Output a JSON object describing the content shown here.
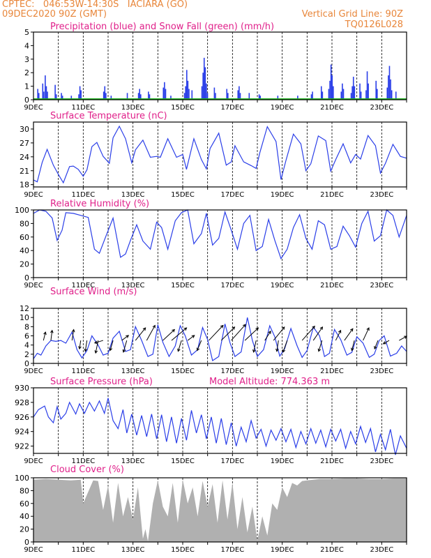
{
  "header": {
    "line1_left": "CPTEC:   046:53W-14:30S   IACIARA (GO)",
    "line2_left": "09DEC2020 90Z (GMT)",
    "line1_right": "Vertical Grid Line: 90Z",
    "line2_right": "TQ0126L028",
    "accent_color": "#e8863a",
    "title_color": "#e0208a"
  },
  "x_tick_labels": [
    "9DEC",
    "11DEC",
    "13DEC",
    "15DEC",
    "17DEC",
    "19DEC",
    "21DEC",
    "23DEC"
  ],
  "chart_data": [
    {
      "id": "precip",
      "type": "bar",
      "title": "Precipitation (blue) and Snow Fall (green) (mm/h)",
      "ylim": [
        0,
        5
      ],
      "yticks": [
        0,
        1,
        2,
        3,
        4,
        5
      ],
      "xlim": [
        0,
        15
      ],
      "series_colors": {
        "precip": "#2a3ee8",
        "snow": "#20b020"
      },
      "precip_events": [
        {
          "day": 0.15,
          "vals": [
            0.8,
            0.5
          ]
        },
        {
          "day": 0.35,
          "vals": [
            1.2,
            0.6
          ]
        },
        {
          "day": 0.45,
          "vals": [
            1.8,
            1.0,
            0.6
          ]
        },
        {
          "day": 0.85,
          "vals": [
            1.1,
            0.4
          ]
        },
        {
          "day": 1.1,
          "vals": [
            0.5,
            0.3
          ]
        },
        {
          "day": 1.5,
          "vals": [
            0.3
          ]
        },
        {
          "day": 1.8,
          "vals": [
            0.4,
            1.0,
            0.7
          ]
        },
        {
          "day": 2.8,
          "vals": [
            0.6,
            1.0,
            0.5
          ]
        },
        {
          "day": 3.1,
          "vals": [
            0.3
          ]
        },
        {
          "day": 3.75,
          "vals": [
            0.5
          ]
        },
        {
          "day": 4.2,
          "vals": [
            0.5,
            0.8,
            0.4
          ]
        },
        {
          "day": 4.6,
          "vals": [
            0.6,
            0.4
          ]
        },
        {
          "day": 5.2,
          "vals": [
            0.9,
            1.3,
            0.8
          ]
        },
        {
          "day": 5.5,
          "vals": [
            0.3
          ]
        },
        {
          "day": 6.05,
          "vals": [
            0.5,
            1.0,
            2.2,
            1.4,
            0.8
          ]
        },
        {
          "day": 6.35,
          "vals": [
            0.7
          ]
        },
        {
          "day": 6.75,
          "vals": [
            1.0,
            2.0,
            3.1,
            2.4,
            1.2,
            0.5
          ]
        },
        {
          "day": 7.25,
          "vals": [
            0.9,
            0.5
          ]
        },
        {
          "day": 7.75,
          "vals": [
            0.8,
            0.5
          ]
        },
        {
          "day": 8.2,
          "vals": [
            0.7,
            1.0,
            0.5
          ]
        },
        {
          "day": 8.65,
          "vals": [
            0.5
          ]
        },
        {
          "day": 9.05,
          "vals": [
            0.4,
            0.3
          ]
        },
        {
          "day": 9.8,
          "vals": [
            0.3
          ]
        },
        {
          "day": 10.6,
          "vals": [
            0.3
          ]
        },
        {
          "day": 11.15,
          "vals": [
            0.4,
            0.6
          ]
        },
        {
          "day": 11.55,
          "vals": [
            1.0,
            0.6
          ]
        },
        {
          "day": 11.85,
          "vals": [
            0.8,
            1.4,
            2.6,
            1.8,
            1.0
          ]
        },
        {
          "day": 12.35,
          "vals": [
            0.6,
            1.2,
            0.8
          ]
        },
        {
          "day": 12.75,
          "vals": [
            0.5,
            1.0,
            1.7,
            1.0
          ]
        },
        {
          "day": 13.1,
          "vals": [
            1.2,
            0.6
          ]
        },
        {
          "day": 13.35,
          "vals": [
            0.7,
            2.1,
            1.2
          ]
        },
        {
          "day": 13.75,
          "vals": [
            1.4,
            0.8
          ]
        },
        {
          "day": 14.2,
          "vals": [
            0.9,
            1.8,
            2.5,
            1.5,
            0.7
          ]
        },
        {
          "day": 14.55,
          "vals": [
            0.6
          ]
        }
      ]
    },
    {
      "id": "temperature",
      "type": "line",
      "title": "Surface Temperature (nC)",
      "ylim": [
        17.5,
        31.5
      ],
      "yticks": [
        18,
        21,
        24,
        27,
        30
      ],
      "xlim": [
        0,
        15
      ],
      "color": "#2a3ee8",
      "x": [
        0,
        0.15,
        0.35,
        0.55,
        0.8,
        1.0,
        1.2,
        1.45,
        1.6,
        1.8,
        2.0,
        2.15,
        2.35,
        2.55,
        2.8,
        3.05,
        3.2,
        3.45,
        3.7,
        3.95,
        4.1,
        4.4,
        4.7,
        4.95,
        5.1,
        5.4,
        5.75,
        6.0,
        6.15,
        6.45,
        6.75,
        6.95,
        7.1,
        7.45,
        7.75,
        7.95,
        8.1,
        8.45,
        8.75,
        8.95,
        9.1,
        9.4,
        9.75,
        9.95,
        10.15,
        10.45,
        10.75,
        10.95,
        11.15,
        11.45,
        11.75,
        11.95,
        12.15,
        12.45,
        12.75,
        12.95,
        13.15,
        13.45,
        13.75,
        13.95,
        14.15,
        14.45,
        14.75,
        15.0
      ],
      "y": [
        19.0,
        18.6,
        22.8,
        25.6,
        22.2,
        20.2,
        18.4,
        21.9,
        22.0,
        21.3,
        19.8,
        21.2,
        26.2,
        27.1,
        24.1,
        22.6,
        28.1,
        30.6,
        27.9,
        22.7,
        25.5,
        27.6,
        23.9,
        24.1,
        23.9,
        27.9,
        23.9,
        24.5,
        21.3,
        27.9,
        23.4,
        21.4,
        25.8,
        29.1,
        22.2,
        22.9,
        26.4,
        22.9,
        22.1,
        21.5,
        24.9,
        30.5,
        27.3,
        19.1,
        23.2,
        28.9,
        26.8,
        21.0,
        22.5,
        28.5,
        27.5,
        20.9,
        23.4,
        26.8,
        22.7,
        24.5,
        23.5,
        28.6,
        26.4,
        20.5,
        22.6,
        26.7,
        24.1,
        23.7
      ]
    },
    {
      "id": "humidity",
      "type": "line",
      "title": "Relative Humidity (%)",
      "ylim": [
        0,
        100
      ],
      "yticks": [
        0,
        20,
        40,
        60,
        80,
        100
      ],
      "xlim": [
        0,
        15
      ],
      "color": "#2a3ee8",
      "x": [
        0,
        0.25,
        0.5,
        0.75,
        0.95,
        1.15,
        1.3,
        1.6,
        1.9,
        2.2,
        2.45,
        2.65,
        2.9,
        3.2,
        3.5,
        3.7,
        3.9,
        4.15,
        4.4,
        4.7,
        4.95,
        5.15,
        5.4,
        5.7,
        5.95,
        6.2,
        6.45,
        6.75,
        6.95,
        7.2,
        7.45,
        7.7,
        7.95,
        8.2,
        8.45,
        8.7,
        8.95,
        9.2,
        9.45,
        9.7,
        9.95,
        10.2,
        10.45,
        10.7,
        10.95,
        11.2,
        11.45,
        11.7,
        11.95,
        12.2,
        12.45,
        12.7,
        12.95,
        13.2,
        13.45,
        13.7,
        13.95,
        14.2,
        14.45,
        14.7,
        15.0
      ],
      "y": [
        95,
        100,
        98,
        88,
        55,
        70,
        96,
        95,
        92,
        89,
        42,
        36,
        60,
        88,
        30,
        35,
        55,
        78,
        54,
        42,
        82,
        74,
        42,
        84,
        96,
        100,
        50,
        65,
        95,
        48,
        58,
        97,
        70,
        42,
        80,
        92,
        40,
        46,
        86,
        55,
        28,
        42,
        74,
        93,
        58,
        42,
        84,
        78,
        42,
        46,
        76,
        62,
        45,
        80,
        98,
        54,
        62,
        100,
        92,
        60,
        92
      ]
    },
    {
      "id": "wind",
      "type": "line",
      "title": "Surface Wind (m/s)",
      "ylim": [
        0,
        12
      ],
      "yticks": [
        0,
        2,
        4,
        6,
        8,
        10,
        12
      ],
      "xlim": [
        0,
        15
      ],
      "color": "#2a3ee8",
      "arrow_color": "#000000",
      "x": [
        0,
        0.15,
        0.3,
        0.5,
        0.7,
        0.9,
        1.1,
        1.3,
        1.55,
        1.75,
        1.95,
        2.15,
        2.35,
        2.6,
        2.8,
        3.0,
        3.2,
        3.45,
        3.7,
        3.9,
        4.1,
        4.35,
        4.6,
        4.8,
        5.0,
        5.2,
        5.45,
        5.7,
        5.9,
        6.1,
        6.35,
        6.6,
        6.8,
        7.0,
        7.2,
        7.45,
        7.7,
        7.9,
        8.1,
        8.35,
        8.6,
        8.8,
        9.0,
        9.25,
        9.5,
        9.7,
        9.9,
        10.1,
        10.35,
        10.6,
        10.8,
        11.0,
        11.25,
        11.5,
        11.7,
        11.9,
        12.1,
        12.35,
        12.6,
        12.8,
        13.0,
        13.25,
        13.5,
        13.7,
        13.9,
        14.1,
        14.35,
        14.6,
        14.8,
        15.0
      ],
      "y": [
        1.0,
        2.2,
        1.8,
        3.8,
        5.0,
        4.8,
        5.0,
        4.4,
        6.8,
        3.0,
        1.2,
        2.8,
        6.0,
        4.0,
        1.8,
        2.2,
        5.5,
        7.0,
        2.6,
        3.0,
        8.0,
        5.0,
        1.5,
        2.0,
        8.4,
        4.6,
        1.5,
        3.8,
        8.2,
        6.0,
        1.8,
        3.0,
        7.8,
        5.2,
        0.6,
        1.5,
        8.6,
        4.5,
        1.5,
        2.5,
        10.0,
        5.0,
        1.5,
        3.0,
        8.2,
        5.8,
        1.6,
        3.2,
        7.6,
        3.8,
        1.3,
        2.8,
        7.9,
        6.0,
        1.5,
        2.2,
        7.4,
        5.2,
        1.8,
        2.4,
        5.8,
        4.4,
        1.3,
        2.0,
        5.0,
        6.0,
        1.6,
        2.2,
        3.8,
        2.6
      ],
      "arrows": [
        {
          "day": 0.4,
          "dx": 0.25,
          "dy": 1.0
        },
        {
          "day": 0.7,
          "dx": 0.15,
          "dy": 1.2
        },
        {
          "day": 1.55,
          "dx": 0.2,
          "dy": 1.3
        },
        {
          "day": 1.9,
          "dx": -0.15,
          "dy": -1.0
        },
        {
          "day": 2.15,
          "dx": -0.2,
          "dy": -1.3
        },
        {
          "day": 2.6,
          "dx": -0.3,
          "dy": -1.5
        },
        {
          "day": 2.8,
          "dx": -1.0,
          "dy": -0.3
        },
        {
          "day": 3.2,
          "dx": -0.35,
          "dy": -1.2
        },
        {
          "day": 3.55,
          "dx": 0.8,
          "dy": 0.6
        },
        {
          "day": 3.75,
          "dx": -0.4,
          "dy": -1.4
        },
        {
          "day": 4.1,
          "dx": 1.2,
          "dy": 1.5
        },
        {
          "day": 4.55,
          "dx": 1.0,
          "dy": 1.8
        },
        {
          "day": 5.2,
          "dx": 1.4,
          "dy": 1.3
        },
        {
          "day": 5.55,
          "dx": 1.8,
          "dy": 1.5
        },
        {
          "day": 5.95,
          "dx": -0.4,
          "dy": -1.3
        },
        {
          "day": 6.2,
          "dx": 0.8,
          "dy": 0.6
        },
        {
          "day": 6.75,
          "dx": -0.5,
          "dy": -1.2
        },
        {
          "day": 7.05,
          "dx": 1.7,
          "dy": 1.8
        },
        {
          "day": 7.55,
          "dx": 1.6,
          "dy": 1.6
        },
        {
          "day": 7.95,
          "dx": 1.7,
          "dy": 1.9
        },
        {
          "day": 8.5,
          "dx": 1.6,
          "dy": 1.5
        },
        {
          "day": 8.95,
          "dx": -0.3,
          "dy": -1.4
        },
        {
          "day": 9.3,
          "dx": 0.7,
          "dy": 1.1
        },
        {
          "day": 9.65,
          "dx": 1.3,
          "dy": 1.6
        },
        {
          "day": 9.85,
          "dx": -0.2,
          "dy": -1.3
        },
        {
          "day": 10.2,
          "dx": -0.5,
          "dy": -1.4
        },
        {
          "day": 10.8,
          "dx": 1.5,
          "dy": 1.7
        },
        {
          "day": 11.25,
          "dx": 1.1,
          "dy": 1.6
        },
        {
          "day": 11.6,
          "dx": -0.4,
          "dy": -1.3
        },
        {
          "day": 12.15,
          "dx": 0.6,
          "dy": 1.2
        },
        {
          "day": 12.5,
          "dx": 1.0,
          "dy": 1.4
        },
        {
          "day": 12.9,
          "dx": -0.3,
          "dy": -1.2
        },
        {
          "day": 13.25,
          "dx": 0.7,
          "dy": 1.5
        },
        {
          "day": 13.85,
          "dx": -0.4,
          "dy": -1.0
        },
        {
          "day": 14.3,
          "dx": -0.7,
          "dy": -0.4
        },
        {
          "day": 14.7,
          "dx": 0.9,
          "dy": 0.5
        }
      ]
    },
    {
      "id": "pressure",
      "type": "line",
      "title": "Surface Pressure (hPa)",
      "subtitle": "Model Altitude: 774.363 m",
      "ylim": [
        921,
        930
      ],
      "yticks": [
        922,
        924,
        926,
        928,
        930
      ],
      "xlim": [
        0,
        15
      ],
      "color": "#2a3ee8",
      "x": [
        0,
        0.2,
        0.45,
        0.6,
        0.8,
        0.95,
        1.1,
        1.3,
        1.45,
        1.7,
        1.85,
        2.05,
        2.25,
        2.45,
        2.65,
        2.85,
        3.0,
        3.2,
        3.4,
        3.6,
        3.75,
        3.95,
        4.15,
        4.35,
        4.55,
        4.75,
        4.95,
        5.15,
        5.35,
        5.55,
        5.75,
        5.95,
        6.15,
        6.35,
        6.55,
        6.75,
        6.95,
        7.15,
        7.35,
        7.55,
        7.75,
        7.95,
        8.15,
        8.35,
        8.55,
        8.75,
        8.95,
        9.15,
        9.35,
        9.55,
        9.75,
        9.95,
        10.15,
        10.35,
        10.55,
        10.75,
        10.95,
        11.15,
        11.35,
        11.55,
        11.75,
        11.95,
        12.15,
        12.35,
        12.55,
        12.75,
        12.95,
        13.15,
        13.35,
        13.55,
        13.75,
        13.95,
        14.15,
        14.35,
        14.55,
        14.75,
        15.0
      ],
      "y": [
        926.0,
        927.0,
        927.5,
        926.0,
        925.2,
        927.4,
        925.7,
        926.5,
        928.0,
        926.4,
        927.8,
        926.5,
        928.0,
        926.8,
        928.2,
        926.5,
        928.6,
        925.5,
        924.4,
        927.0,
        923.8,
        926.4,
        923.5,
        926.2,
        923.3,
        926.4,
        923.0,
        926.3,
        922.6,
        926.0,
        922.4,
        925.8,
        922.8,
        926.9,
        923.8,
        926.3,
        923.0,
        926.0,
        922.4,
        925.8,
        922.2,
        925.2,
        922.0,
        924.6,
        922.6,
        925.5,
        923.1,
        924.3,
        922.0,
        924.2,
        922.8,
        924.4,
        922.6,
        924.3,
        921.8,
        924.0,
        922.3,
        924.4,
        922.4,
        924.2,
        921.9,
        924.3,
        922.7,
        924.3,
        921.7,
        924.0,
        922.3,
        924.7,
        922.5,
        924.4,
        921.2,
        923.6,
        921.5,
        924.3,
        920.8,
        923.4,
        921.7
      ]
    },
    {
      "id": "cloud",
      "type": "area",
      "title": "Cloud Cover (%)",
      "ylim": [
        0,
        100
      ],
      "yticks": [
        0,
        20,
        40,
        60,
        80,
        100
      ],
      "xlim": [
        0,
        15
      ],
      "color": "#b0b0b0",
      "x": [
        0,
        0.5,
        1.0,
        1.5,
        1.9,
        2.0,
        2.4,
        2.6,
        2.8,
        3.0,
        3.2,
        3.4,
        3.6,
        3.8,
        4.0,
        4.2,
        4.4,
        4.5,
        4.6,
        4.8,
        5.0,
        5.2,
        5.4,
        5.6,
        5.8,
        6.0,
        6.2,
        6.4,
        6.6,
        6.8,
        7.0,
        7.2,
        7.4,
        7.6,
        7.8,
        8.0,
        8.2,
        8.4,
        8.6,
        8.8,
        9.0,
        9.2,
        9.4,
        9.6,
        9.8,
        10.0,
        10.2,
        10.4,
        10.6,
        10.8,
        11.0,
        11.5,
        12.0,
        12.5,
        13.0,
        13.5,
        14.0,
        14.5,
        15.0
      ],
      "y": [
        97,
        98,
        97,
        96,
        97,
        60,
        96,
        95,
        50,
        88,
        30,
        92,
        40,
        70,
        35,
        85,
        5,
        20,
        1,
        60,
        96,
        55,
        40,
        92,
        30,
        97,
        60,
        85,
        40,
        95,
        55,
        90,
        30,
        96,
        35,
        92,
        20,
        70,
        15,
        55,
        2,
        40,
        10,
        60,
        50,
        85,
        70,
        92,
        88,
        95,
        96,
        98,
        98,
        99,
        99,
        98,
        98,
        99,
        99
      ]
    }
  ]
}
